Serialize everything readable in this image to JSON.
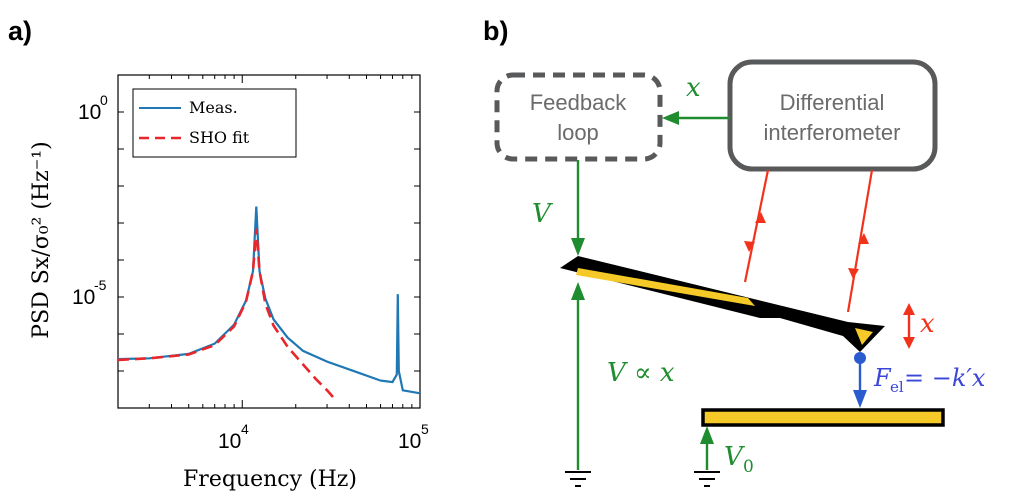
{
  "panel_a": {
    "label": "a)",
    "ylabel": "PSD Sx/σ₀² (Hz⁻¹)",
    "xlabel": "Frequency (Hz)",
    "y_ticks": [
      "10",
      "10"
    ],
    "y_tick_exps": [
      "0",
      "-5"
    ],
    "x_ticks": [
      "10",
      "10"
    ],
    "x_tick_exps": [
      "4",
      "5"
    ],
    "legend": {
      "meas": "Meas.",
      "fit": "SHO fit"
    },
    "colors": {
      "meas": "#1f77b4",
      "fit": "#e8262b"
    }
  },
  "chart_data": {
    "type": "line",
    "xscale": "log",
    "yscale": "log",
    "xlim": [
      2000,
      100000
    ],
    "ylim": [
      1e-08,
      10
    ],
    "series": [
      {
        "name": "Meas.",
        "x": [
          2000,
          3000,
          5000,
          7000,
          9000,
          10500,
          11500,
          12000,
          12500,
          13500,
          15000,
          18000,
          22000,
          30000,
          45000,
          60000,
          70000,
          74000,
          75000,
          76000,
          80000,
          100000
        ],
        "y": [
          2.1e-07,
          2.2e-07,
          2.9e-07,
          5.5e-07,
          1.8e-06,
          8e-06,
          5e-05,
          0.0028,
          5e-05,
          9e-06,
          2.5e-06,
          8e-07,
          3.5e-07,
          1.8e-07,
          9e-08,
          5.5e-08,
          5e-08,
          8e-08,
          1.2e-05,
          1e-07,
          3e-08,
          2.5e-08
        ]
      },
      {
        "name": "SHO fit",
        "x": [
          2000,
          3000,
          5000,
          7000,
          9000,
          10500,
          11500,
          12000,
          12500,
          13500,
          15000,
          18000,
          22000,
          26000,
          30000,
          33000
        ],
        "y": [
          2e-07,
          2.2e-07,
          2.8e-07,
          5e-07,
          1.6e-06,
          7.5e-06,
          5e-05,
          0.0007,
          5e-05,
          6.5e-06,
          1.7e-06,
          4.5e-07,
          1.5e-07,
          6e-08,
          3e-08,
          1.8e-08
        ]
      }
    ]
  },
  "panel_b": {
    "label": "b)",
    "feedback_lines": [
      "Feedback",
      "loop"
    ],
    "interferometer_lines": [
      "Differential",
      "interferometer"
    ],
    "x_signal": "x",
    "v": "V",
    "v_prop": "V ∝ x",
    "x_disp": "x",
    "f_el": "F",
    "f_el_sub": "el",
    "f_el_rhs": " = −k′x",
    "v0": "V",
    "v0_sub": "0"
  }
}
